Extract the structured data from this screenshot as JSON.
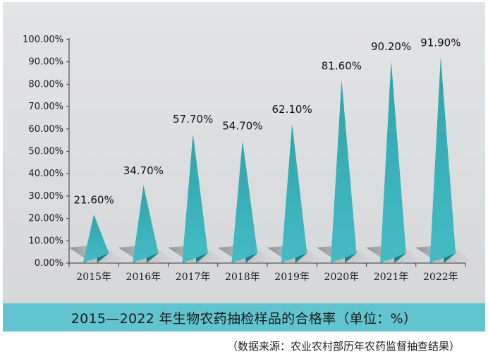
{
  "chart_data": {
    "type": "bar",
    "title": "2015—2022 年生物农药抽检样品的合格率（单位：%）",
    "source": "（数据来源：农业农村部历年农药监督抽查结果）",
    "categories": [
      "2015年",
      "2016年",
      "2017年",
      "2018年",
      "2019年",
      "2020年",
      "2021年",
      "2022年"
    ],
    "values": [
      21.6,
      34.7,
      57.7,
      54.7,
      62.1,
      81.6,
      90.2,
      91.9
    ],
    "value_labels": [
      "21.60%",
      "34.70%",
      "57.70%",
      "54.70%",
      "62.10%",
      "81.60%",
      "90.20%",
      "91.90%"
    ],
    "y_ticks": [
      "0.00%",
      "10.00%",
      "20.00%",
      "30.00%",
      "40.00%",
      "50.00%",
      "60.00%",
      "70.00%",
      "80.00%",
      "90.00%",
      "100.00%"
    ],
    "ylim": [
      0,
      100
    ],
    "xlabel": "",
    "ylabel": "",
    "grid": false,
    "legend": "none",
    "colors": {
      "bar_light": "#40b7c0",
      "bar_dark": "#1a8289",
      "shadow": "#8f9092",
      "panel": "#dedfe1",
      "title_bar": "#62c4ce"
    }
  }
}
